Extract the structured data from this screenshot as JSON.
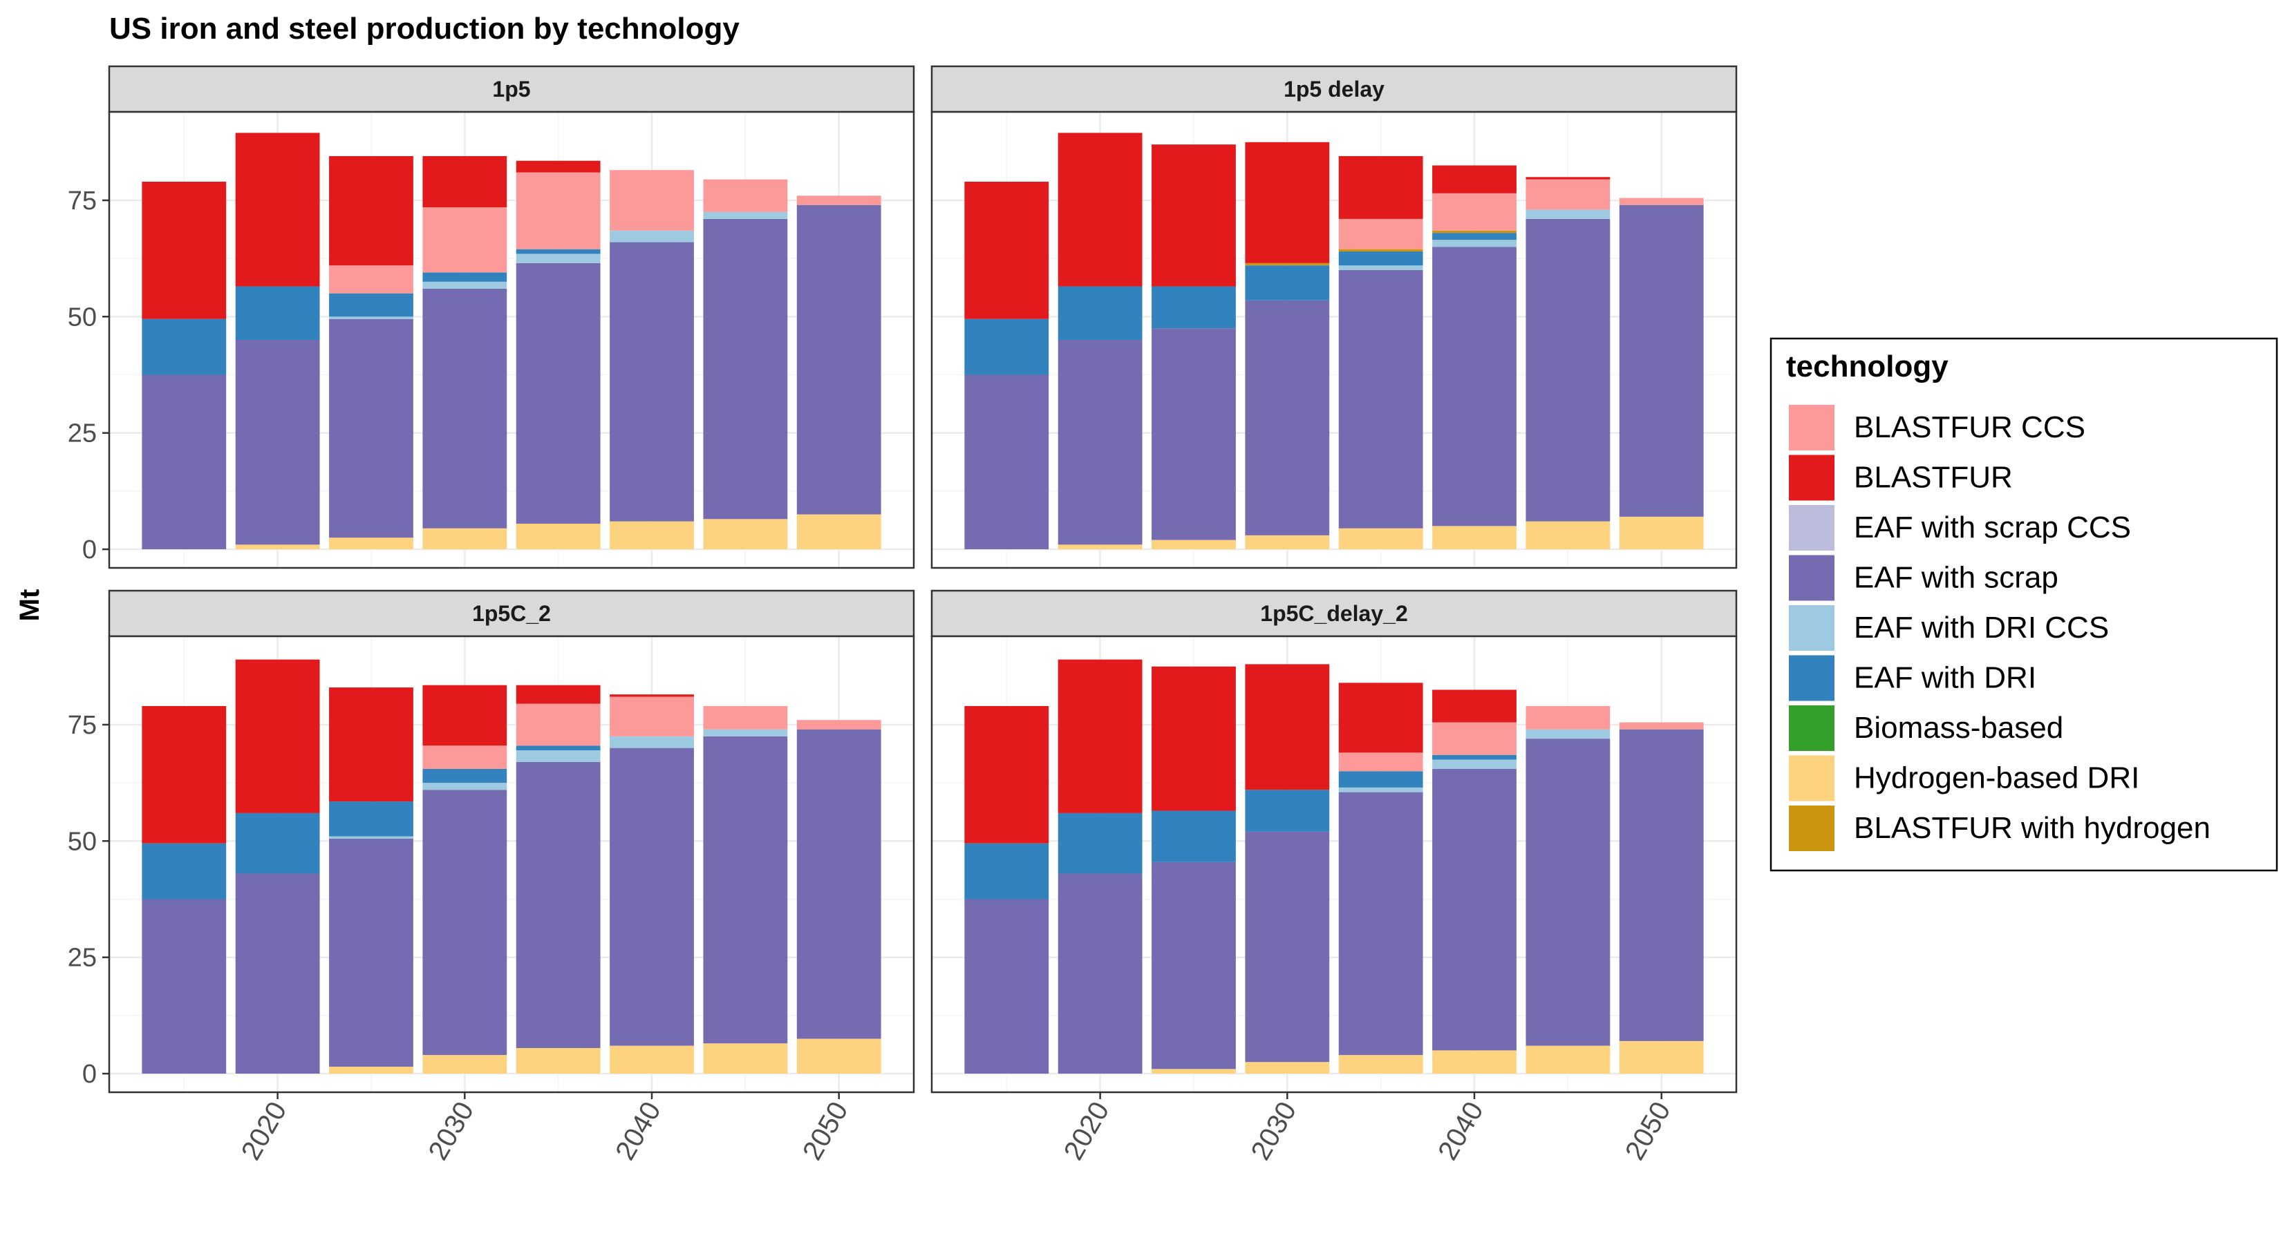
{
  "chart_data": {
    "type": "bar",
    "stacked": true,
    "title": "US iron and steel production by technology",
    "xlabel": "",
    "ylabel": "Mt",
    "x": [
      2015,
      2020,
      2025,
      2030,
      2035,
      2040,
      2045,
      2050
    ],
    "x_ticks": [
      2020,
      2030,
      2040,
      2050
    ],
    "x_tick_labels": [
      "2020",
      "2030",
      "2040",
      "2050"
    ],
    "xlim": [
      2011,
      2054
    ],
    "y_ticks": [
      0,
      25,
      50,
      75
    ],
    "y_tick_labels": [
      "0",
      "25",
      "50",
      "75"
    ],
    "ylim": [
      -4,
      94
    ],
    "grid": true,
    "legend": {
      "title": "technology",
      "position": "right",
      "entries": [
        {
          "name": "BLASTFUR CCS",
          "color": "#fb9a99"
        },
        {
          "name": "BLASTFUR",
          "color": "#e31a1c"
        },
        {
          "name": "EAF with scrap CCS",
          "color": "#bcbddc"
        },
        {
          "name": "EAF with scrap",
          "color": "#756bb1"
        },
        {
          "name": "EAF with DRI CCS",
          "color": "#9ecae1"
        },
        {
          "name": "EAF with DRI",
          "color": "#3182bd"
        },
        {
          "name": "Biomass-based",
          "color": "#33a02c"
        },
        {
          "name": "Hydrogen-based DRI",
          "color": "#fdd37f"
        },
        {
          "name": "BLASTFUR with hydrogen",
          "color": "#cc950f"
        }
      ]
    },
    "stack_order": [
      "Hydrogen-based DRI",
      "Biomass-based",
      "EAF with scrap",
      "EAF with scrap CCS",
      "EAF with DRI CCS",
      "EAF with DRI",
      "BLASTFUR with hydrogen",
      "BLASTFUR CCS",
      "BLASTFUR"
    ],
    "panels": [
      {
        "name": "1p5",
        "series": [
          {
            "name": "Hydrogen-based DRI",
            "values": [
              0,
              1,
              2.5,
              4.5,
              5.5,
              6,
              6.5,
              7.5
            ]
          },
          {
            "name": "Biomass-based",
            "values": [
              0,
              0,
              0,
              0,
              0,
              0,
              0,
              0
            ]
          },
          {
            "name": "EAF with scrap",
            "values": [
              37.5,
              44,
              47,
              51.5,
              56,
              60,
              64.5,
              66.5
            ]
          },
          {
            "name": "EAF with scrap CCS",
            "values": [
              0,
              0,
              0,
              0,
              0,
              0,
              0,
              0
            ]
          },
          {
            "name": "EAF with DRI CCS",
            "values": [
              0,
              0,
              0.5,
              1.5,
              2,
              2.5,
              1.5,
              0
            ]
          },
          {
            "name": "EAF with DRI",
            "values": [
              12,
              11.5,
              5,
              2,
              1,
              0,
              0,
              0
            ]
          },
          {
            "name": "BLASTFUR with hydrogen",
            "values": [
              0,
              0,
              0,
              0,
              0,
              0,
              0,
              0
            ]
          },
          {
            "name": "BLASTFUR CCS",
            "values": [
              0,
              0,
              6,
              14,
              16.5,
              13,
              7,
              2
            ]
          },
          {
            "name": "BLASTFUR",
            "values": [
              29.5,
              33,
              23.5,
              11,
              2.5,
              0,
              0,
              0
            ]
          }
        ]
      },
      {
        "name": "1p5 delay",
        "series": [
          {
            "name": "Hydrogen-based DRI",
            "values": [
              0,
              1,
              2,
              3,
              4.5,
              5,
              6,
              7
            ]
          },
          {
            "name": "Biomass-based",
            "values": [
              0,
              0,
              0,
              0,
              0,
              0,
              0,
              0
            ]
          },
          {
            "name": "EAF with scrap",
            "values": [
              37.5,
              44,
              45.5,
              50.5,
              55.5,
              60,
              65,
              67
            ]
          },
          {
            "name": "EAF with scrap CCS",
            "values": [
              0,
              0,
              0,
              0,
              0,
              0,
              0,
              0
            ]
          },
          {
            "name": "EAF with DRI CCS",
            "values": [
              0,
              0,
              0,
              0,
              1,
              1.5,
              2,
              0
            ]
          },
          {
            "name": "EAF with DRI",
            "values": [
              12,
              11.5,
              9,
              7.5,
              3,
              1.5,
              0,
              0
            ]
          },
          {
            "name": "BLASTFUR with hydrogen",
            "values": [
              0,
              0,
              0,
              0.5,
              0.5,
              0.5,
              0,
              0
            ]
          },
          {
            "name": "BLASTFUR CCS",
            "values": [
              0,
              0,
              0,
              0,
              6.5,
              8,
              6.5,
              1.5
            ]
          },
          {
            "name": "BLASTFUR",
            "values": [
              29.5,
              33,
              30.5,
              26,
              13.5,
              6,
              0.5,
              0
            ]
          }
        ]
      },
      {
        "name": "1p5C_2",
        "series": [
          {
            "name": "Hydrogen-based DRI",
            "values": [
              0,
              0,
              1.5,
              4,
              5.5,
              6,
              6.5,
              7.5
            ]
          },
          {
            "name": "Biomass-based",
            "values": [
              0,
              0,
              0,
              0,
              0,
              0,
              0,
              0
            ]
          },
          {
            "name": "EAF with scrap",
            "values": [
              37.5,
              43,
              49,
              57,
              61.5,
              64,
              66,
              66.5
            ]
          },
          {
            "name": "EAF with scrap CCS",
            "values": [
              0,
              0,
              0,
              0,
              0,
              0,
              0,
              0
            ]
          },
          {
            "name": "EAF with DRI CCS",
            "values": [
              0,
              0,
              0.5,
              1.5,
              2.5,
              2.5,
              1.5,
              0
            ]
          },
          {
            "name": "EAF with DRI",
            "values": [
              12,
              13,
              7.5,
              3,
              1,
              0,
              0,
              0
            ]
          },
          {
            "name": "BLASTFUR with hydrogen",
            "values": [
              0,
              0,
              0,
              0,
              0,
              0,
              0,
              0
            ]
          },
          {
            "name": "BLASTFUR CCS",
            "values": [
              0,
              0,
              0,
              5,
              9,
              8.5,
              5,
              2
            ]
          },
          {
            "name": "BLASTFUR",
            "values": [
              29.5,
              33,
              24.5,
              13,
              4,
              0.5,
              0,
              0
            ]
          }
        ]
      },
      {
        "name": "1p5C_delay_2",
        "series": [
          {
            "name": "Hydrogen-based DRI",
            "values": [
              0,
              0,
              1,
              2.5,
              4,
              5,
              6,
              7
            ]
          },
          {
            "name": "Biomass-based",
            "values": [
              0,
              0,
              0,
              0,
              0,
              0,
              0,
              0
            ]
          },
          {
            "name": "EAF with scrap",
            "values": [
              37.5,
              43,
              44.5,
              49.5,
              56.5,
              60.5,
              66,
              67
            ]
          },
          {
            "name": "EAF with scrap CCS",
            "values": [
              0,
              0,
              0,
              0,
              0,
              0,
              0,
              0
            ]
          },
          {
            "name": "EAF with DRI CCS",
            "values": [
              0,
              0,
              0,
              0,
              1,
              2,
              2,
              0
            ]
          },
          {
            "name": "EAF with DRI",
            "values": [
              12,
              13,
              11,
              9,
              3.5,
              1,
              0,
              0
            ]
          },
          {
            "name": "BLASTFUR with hydrogen",
            "values": [
              0,
              0,
              0,
              0,
              0,
              0,
              0,
              0
            ]
          },
          {
            "name": "BLASTFUR CCS",
            "values": [
              0,
              0,
              0,
              0,
              4,
              7,
              5,
              1.5
            ]
          },
          {
            "name": "BLASTFUR",
            "values": [
              29.5,
              33,
              31,
              27,
              15,
              7,
              0,
              0
            ]
          }
        ]
      }
    ]
  }
}
